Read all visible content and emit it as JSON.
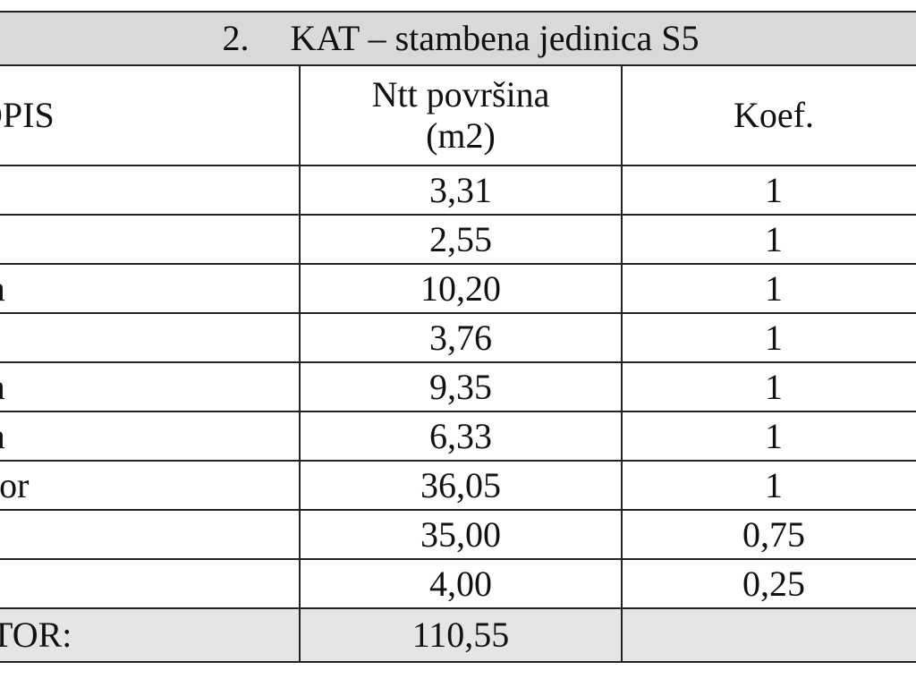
{
  "title": {
    "number": "2.",
    "text": "KAT – stambena jedinica S5"
  },
  "headers": {
    "description": "OPIS",
    "area_line1": "Ntt površina",
    "area_line2": "(m2)",
    "coefficient": "Koef."
  },
  "rows": [
    {
      "description": "",
      "area": "3,31",
      "coef": "1"
    },
    {
      "description": "",
      "area": "2,55",
      "coef": "1"
    },
    {
      "description": "a",
      "area": "10,20",
      "coef": "1"
    },
    {
      "description": "",
      "area": "3,76",
      "coef": "1"
    },
    {
      "description": "a",
      "area": "9,35",
      "coef": "1"
    },
    {
      "description": "a",
      "area": "6,33",
      "coef": "1"
    },
    {
      "description": "tor",
      "area": "36,05",
      "coef": "1"
    },
    {
      "description": "",
      "area": "35,00",
      "coef": "0,75"
    },
    {
      "description": "",
      "area": "4,00",
      "coef": "0,25"
    }
  ],
  "total": {
    "label": "TOR:",
    "value": "110,55"
  }
}
